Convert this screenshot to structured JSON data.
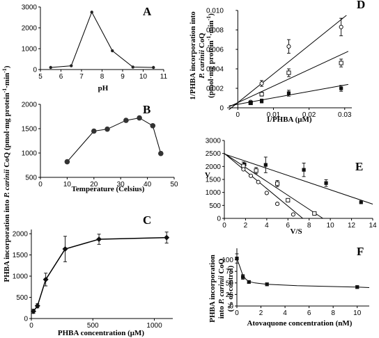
{
  "figure": {
    "shared_ylabel_prefix": "PHBA incorporation into ",
    "shared_ylabel_species": "P. carinii",
    "shared_ylabel_suffix": " CoQ (pmol·mg protein",
    "shared_ylabel_exp": "-1",
    "shared_ylabel_tail": "·min",
    "shared_ylabel_exp2": "-1",
    "shared_ylabel_close": ")",
    "d_ylabel_line1": "1/PHBA incorporation into",
    "d_ylabel_line2_species": "P. carinii",
    "d_ylabel_line2_tail": " CoQ",
    "d_ylabel_line3": "(pmol·mg protein",
    "d_ylabel_line3_exp": "-1",
    "d_ylabel_line3_tail": "·min",
    "d_ylabel_line3_exp2": "-1",
    "d_ylabel_line3_close": ")",
    "f_ylabel_line1": "PHBA incorporation",
    "f_ylabel_line2_pre": "into ",
    "f_ylabel_line2_species": "P. carinii",
    "f_ylabel_line2_tail": " CoQ",
    "f_ylabel_line3": "(% of control)"
  },
  "chart_data": [
    {
      "panel": "A",
      "type": "line",
      "xlabel": "pH",
      "ylabel": "",
      "xlim": [
        5,
        11
      ],
      "ylim": [
        0,
        3000
      ],
      "xticks": [
        "5",
        "6",
        "7",
        "8",
        "9",
        "10",
        "11"
      ],
      "yticks": [
        "0",
        "1000",
        "2000",
        "3000"
      ],
      "marker": "filled-circle-small",
      "series": [
        {
          "x": [
            5.5,
            6.5,
            7.5,
            8.5,
            9.5,
            10.5
          ],
          "y": [
            100,
            180,
            2750,
            900,
            120,
            100
          ]
        }
      ]
    },
    {
      "panel": "B",
      "type": "line",
      "xlabel": "Temperature (Celsius)",
      "ylabel": "",
      "xlim": [
        0,
        50
      ],
      "ylim": [
        500,
        2000
      ],
      "xticks": [
        "0",
        "10",
        "20",
        "30",
        "40",
        "50"
      ],
      "yticks": [
        "500",
        "1000",
        "1500",
        "2000"
      ],
      "marker": "filled-circle",
      "series": [
        {
          "x": [
            10,
            20,
            25,
            32,
            37,
            42,
            45
          ],
          "y": [
            820,
            1450,
            1490,
            1670,
            1720,
            1560,
            990
          ]
        }
      ]
    },
    {
      "panel": "C",
      "type": "line",
      "xlabel": "PHBA concentration (μM)",
      "ylabel": "",
      "xlim": [
        0,
        1150
      ],
      "ylim": [
        0,
        2100
      ],
      "xticks": [
        "0",
        "500",
        "1000"
      ],
      "yticks": [
        "0",
        "500",
        "1000",
        "1500",
        "2000"
      ],
      "marker": "filled-diamond",
      "series": [
        {
          "x": [
            17,
            50,
            117,
            275,
            550,
            1100
          ],
          "y": [
            170,
            300,
            920,
            1640,
            1870,
            1910
          ],
          "err": [
            50,
            50,
            150,
            300,
            120,
            130
          ]
        }
      ]
    },
    {
      "panel": "D",
      "type": "scatter",
      "xlabel": "1/PHBA (μM)",
      "ylabel": "",
      "xlim": [
        -0.003,
        0.032
      ],
      "ylim": [
        0,
        0.01
      ],
      "xticks": [
        "0",
        "0.01",
        "0.02",
        "0.03"
      ],
      "yticks": [
        "0",
        "0.002",
        "0.004",
        "0.006",
        "0.008",
        "0.010"
      ],
      "series": [
        {
          "marker": "open-circle",
          "x": [
            0.0036,
            0.0067,
            0.0143,
            0.029
          ],
          "y": [
            0.0006,
            0.0025,
            0.0063,
            0.0083
          ],
          "err": [
            0.0001,
            0.0003,
            0.0007,
            0.0009
          ],
          "fit": [
            [
              -0.0025,
              -0.0002
            ],
            [
              0.0305,
              0.0095
            ]
          ]
        },
        {
          "marker": "open-square",
          "x": [
            0.0036,
            0.0067,
            0.0143,
            0.029
          ],
          "y": [
            0.0005,
            0.0014,
            0.0036,
            0.0046
          ],
          "err": [
            0.0001,
            0.0002,
            0.0004,
            0.0004
          ],
          "fit": [
            [
              -0.0025,
              0.0001
            ],
            [
              0.031,
              0.0058
            ]
          ]
        },
        {
          "marker": "filled-square",
          "x": [
            0.0036,
            0.0067,
            0.0143,
            0.029
          ],
          "y": [
            0.0005,
            0.0007,
            0.0015,
            0.002
          ],
          "err": [
            0.0001,
            0.0002,
            0.0003,
            0.0003
          ],
          "fit": [
            [
              -0.0025,
              0.0002
            ],
            [
              0.031,
              0.0024
            ]
          ]
        }
      ]
    },
    {
      "panel": "E",
      "type": "scatter",
      "xlabel": "V/S",
      "ylabel": "V",
      "xlim": [
        0,
        14
      ],
      "ylim": [
        0,
        3000
      ],
      "xticks": [
        "0",
        "2",
        "4",
        "6",
        "8",
        "10",
        "12",
        "14"
      ],
      "yticks": [
        "0",
        "500",
        "1000",
        "1500",
        "2000",
        "2500",
        "3000"
      ],
      "series": [
        {
          "marker": "filled-square",
          "x": [
            1.9,
            3.9,
            7.5,
            9.6,
            12.9
          ],
          "y": [
            2080,
            2060,
            1870,
            1360,
            620
          ],
          "err": [
            0,
            300,
            260,
            130,
            0
          ],
          "fit": [
            [
              0,
              2480
            ],
            [
              14,
              550
            ]
          ]
        },
        {
          "marker": "open-square",
          "x": [
            1.8,
            3.0,
            5.0,
            6.0,
            8.5
          ],
          "y": [
            2020,
            1840,
            1340,
            700,
            190
          ],
          "err": [
            150,
            120,
            120,
            0,
            0
          ],
          "fit": [
            [
              0,
              2500
            ],
            [
              9.3,
              0
            ]
          ]
        },
        {
          "marker": "open-circle",
          "x": [
            1.8,
            2.5,
            3.2,
            4.0,
            5.0,
            6.5
          ],
          "y": [
            1890,
            1640,
            1400,
            980,
            560,
            150
          ],
          "err": [
            0,
            0,
            0,
            0,
            0,
            0
          ],
          "fit": [
            [
              0,
              2500
            ],
            [
              7.4,
              0
            ]
          ]
        }
      ]
    },
    {
      "panel": "F",
      "type": "line",
      "xlabel": "Atovaquone concentration (nM)",
      "ylabel": "",
      "xlim": [
        0,
        11
      ],
      "ylim": [
        0,
        125
      ],
      "xticks": [
        "0",
        "2",
        "4",
        "6",
        "8",
        "10"
      ],
      "yticks": [
        "0",
        "25",
        "50",
        "75",
        "100"
      ],
      "marker": "filled-square",
      "series": [
        {
          "x": [
            0,
            0.5,
            1,
            2.5,
            10
          ],
          "y": [
            103,
            63,
            52,
            47,
            41
          ],
          "err": [
            10,
            5,
            3,
            3,
            3
          ],
          "curve": [
            [
              0,
              103
            ],
            [
              0.25,
              85
            ],
            [
              0.5,
              66
            ],
            [
              0.75,
              58
            ],
            [
              1,
              53
            ],
            [
              1.5,
              50
            ],
            [
              2.5,
              47
            ],
            [
              5,
              44
            ],
            [
              10,
              41
            ],
            [
              11,
              40
            ]
          ]
        }
      ]
    }
  ]
}
